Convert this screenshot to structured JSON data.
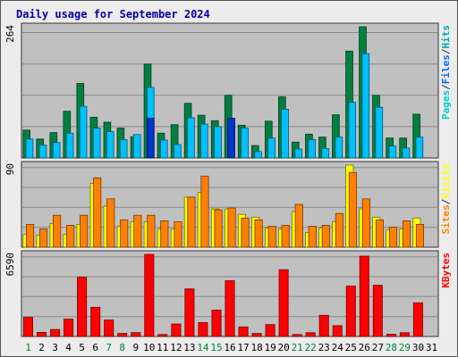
{
  "chart_data": {
    "type": "bar",
    "title": "Daily usage for September 2024",
    "categories": [
      "1",
      "2",
      "3",
      "4",
      "5",
      "6",
      "7",
      "8",
      "9",
      "10",
      "11",
      "12",
      "13",
      "14",
      "15",
      "16",
      "17",
      "18",
      "19",
      "20",
      "21",
      "22",
      "23",
      "24",
      "25",
      "26",
      "27",
      "28",
      "29",
      "30",
      "31"
    ],
    "weekend_categories": [
      "1",
      "7",
      "8",
      "14",
      "15",
      "21",
      "22",
      "28",
      "29"
    ],
    "grid": true,
    "panels": [
      {
        "name": "hits-files-pages",
        "ymax_label": "264",
        "ymax": 264,
        "legend": [
          "Pages",
          "/",
          "Files",
          "/",
          "Hits"
        ],
        "legend_colors": [
          "#00cccc",
          "#333333",
          "#0066ff",
          "#333333",
          "#00aaaa"
        ],
        "series": [
          {
            "name": "Hits",
            "color": "#008040",
            "values": [
              56,
              38,
              51,
              94,
              150,
              82,
              72,
              60,
              43,
              189,
              50,
              67,
              110,
              86,
              75,
              126,
              66,
              25,
              74,
              123,
              32,
              48,
              42,
              87,
              215,
              264,
              126,
              40,
              40,
              88,
              0
            ]
          },
          {
            "name": "Files",
            "color": "#00c0ff",
            "values": [
              38,
              26,
              31,
              50,
              104,
              60,
              53,
              37,
              47,
              142,
              36,
              27,
              81,
              68,
              63,
              77,
              60,
              13,
              40,
              98,
              18,
              37,
              19,
              42,
              112,
              210,
              102,
              24,
              20,
              42,
              0
            ]
          },
          {
            "name": "Pages",
            "color": "#0033cc",
            "values": [
              0,
              0,
              0,
              0,
              0,
              0,
              0,
              0,
              0,
              80,
              0,
              0,
              0,
              0,
              0,
              80,
              0,
              0,
              0,
              0,
              0,
              0,
              0,
              0,
              0,
              0,
              0,
              0,
              0,
              0,
              0
            ]
          }
        ]
      },
      {
        "name": "visits-sites",
        "ymax_label": "90",
        "ymax": 90,
        "legend": [
          "Sites",
          "/",
          "Visits"
        ],
        "legend_colors": [
          "#ff8000",
          "#333333",
          "#ffff00"
        ],
        "series": [
          {
            "name": "Visits",
            "color": "#ffff00",
            "values": [
              14,
              13,
              26,
              14,
              25,
              70,
              45,
              23,
              28,
              28,
              20,
              20,
              55,
              60,
              42,
              42,
              36,
              33,
              21,
              20,
              39,
              16,
              21,
              28,
              90,
              42,
              33,
              19,
              20,
              32,
              0
            ]
          },
          {
            "name": "Sites",
            "color": "#ff8000",
            "values": [
              25,
              20,
              35,
              24,
              35,
              76,
              53,
              30,
              35,
              35,
              29,
              28,
              55,
              78,
              41,
              43,
              32,
              30,
              23,
              24,
              47,
              23,
              24,
              37,
              82,
              53,
              30,
              22,
              29,
              25,
              0
            ]
          }
        ]
      },
      {
        "name": "kbytes",
        "ymax_label": "6590",
        "ymax": 6590,
        "legend": [
          "KBytes"
        ],
        "legend_colors": [
          "#ff0000"
        ],
        "series": [
          {
            "name": "KBytes",
            "color": "#ff0000",
            "values": [
              1530,
              330,
              560,
              1390,
              4750,
              2340,
              1320,
              240,
              310,
              6590,
              160,
              1000,
              3820,
              1120,
              2110,
              4480,
              770,
              240,
              950,
              5360,
              160,
              300,
              1700,
              870,
              4050,
              6450,
              4110,
              180,
              300,
              2700,
              0
            ]
          }
        ]
      }
    ]
  }
}
